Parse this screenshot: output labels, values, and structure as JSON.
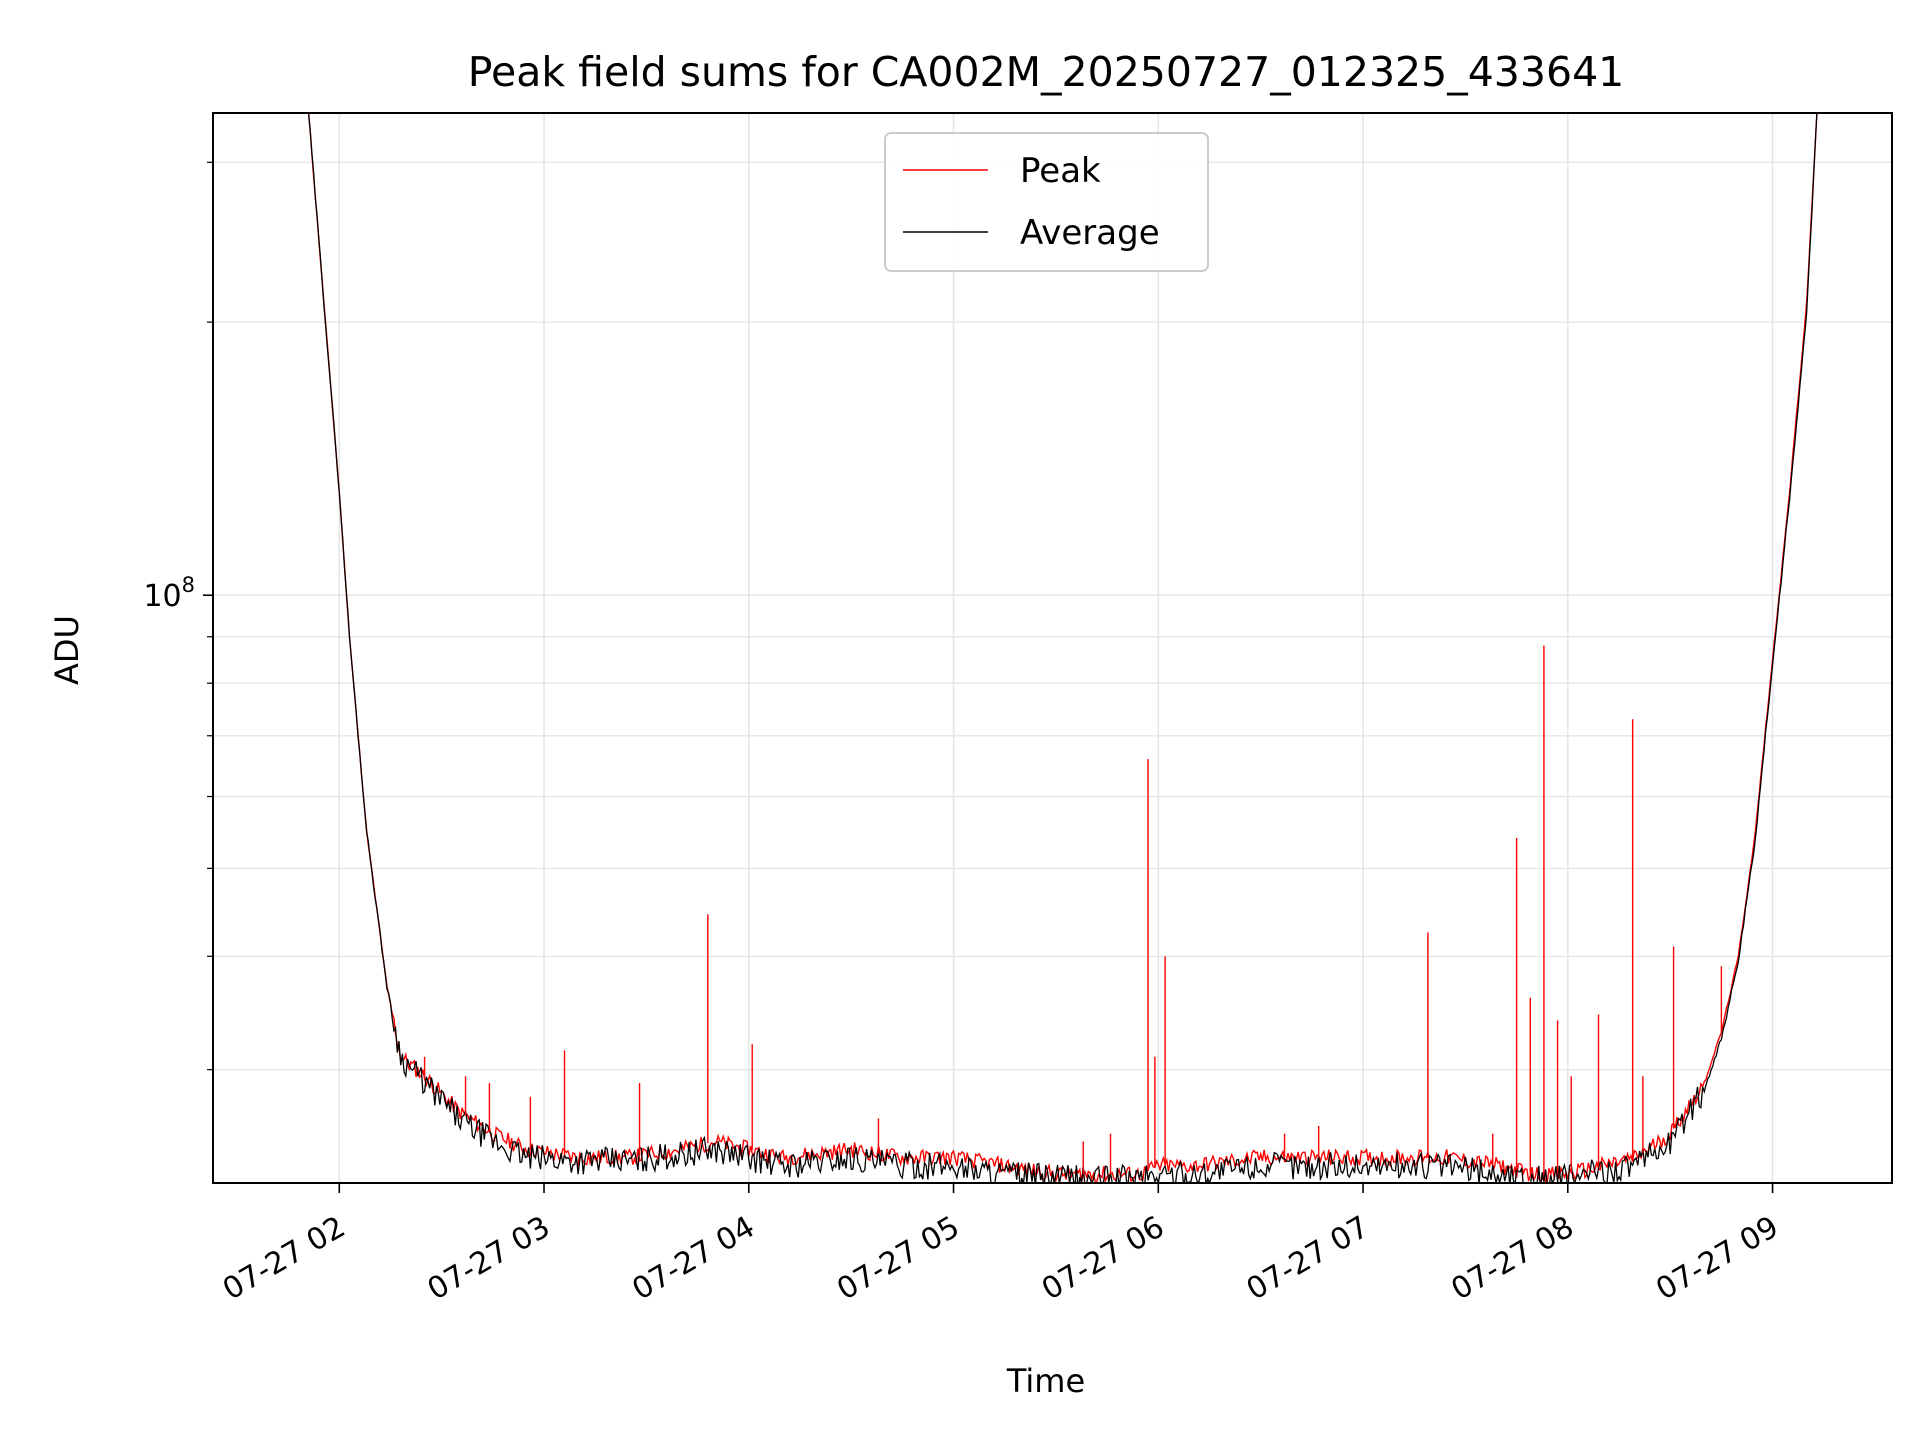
{
  "chart_data": {
    "type": "line",
    "title": "Peak field sums for CA002M_20250727_012325_433641",
    "xlabel": "Time",
    "ylabel": "ADU",
    "yscale": "log",
    "xlim": [
      "07-27 01:23",
      "07-27 09:35"
    ],
    "ylim": [
      22500000,
      340000000
    ],
    "x_ticks": [
      "07-27 02",
      "07-27 03",
      "07-27 04",
      "07-27 05",
      "07-27 06",
      "07-27 07",
      "07-27 08",
      "07-27 09"
    ],
    "y_ticks": [
      {
        "value": 100000000,
        "base": "10",
        "exp": "8"
      }
    ],
    "grid": true,
    "legend_position": "upper center",
    "colors": {
      "peak": "#ff0000",
      "average": "#000000"
    },
    "series": [
      {
        "name": "Peak",
        "color": "#ff0000",
        "x": [
          "01:51",
          "02:00",
          "02:03",
          "02:08",
          "02:14",
          "02:18",
          "02:25",
          "02:35",
          "02:45",
          "02:55",
          "03:10",
          "03:25",
          "03:40",
          "03:50",
          "04:00",
          "04:10",
          "04:30",
          "04:45",
          "05:00",
          "05:15",
          "05:30",
          "05:45",
          "05:55",
          "06:00",
          "06:10",
          "06:30",
          "06:50",
          "07:10",
          "07:25",
          "07:40",
          "07:50",
          "08:00",
          "08:10",
          "08:20",
          "08:30",
          "08:40",
          "08:45",
          "08:50",
          "08:55",
          "09:00",
          "09:05",
          "09:10",
          "09:13"
        ],
        "y": [
          340000000,
          130000000,
          90000000,
          55000000,
          37000000,
          31000000,
          29500000,
          27000000,
          25500000,
          24500000,
          24000000,
          24000000,
          24500000,
          25000000,
          24500000,
          24000000,
          24500000,
          24000000,
          24000000,
          23500000,
          23000000,
          23000000,
          23000000,
          23500000,
          23500000,
          24000000,
          24000000,
          24000000,
          24000000,
          23500000,
          23000000,
          23000000,
          23500000,
          24000000,
          25500000,
          29000000,
          33000000,
          40000000,
          55000000,
          85000000,
          130000000,
          210000000,
          340000000
        ]
      },
      {
        "name": "Average",
        "color": "#000000",
        "x": [
          "01:51",
          "02:00",
          "02:03",
          "02:08",
          "02:14",
          "02:18",
          "02:25",
          "02:35",
          "02:45",
          "02:55",
          "03:10",
          "03:25",
          "03:40",
          "03:50",
          "04:00",
          "04:10",
          "04:30",
          "04:45",
          "05:00",
          "05:15",
          "05:30",
          "05:45",
          "05:55",
          "06:00",
          "06:10",
          "06:30",
          "06:50",
          "07:10",
          "07:25",
          "07:40",
          "07:50",
          "08:00",
          "08:10",
          "08:20",
          "08:30",
          "08:40",
          "08:45",
          "08:50",
          "08:55",
          "09:00",
          "09:05",
          "09:10",
          "09:13"
        ],
        "y": [
          340000000,
          130000000,
          90000000,
          55000000,
          37000000,
          31000000,
          29000000,
          26500000,
          25000000,
          24000000,
          23800000,
          23800000,
          24200000,
          24500000,
          24000000,
          23500000,
          24000000,
          23500000,
          23500000,
          23000000,
          22800000,
          22800000,
          22800000,
          23000000,
          23000000,
          23500000,
          23500000,
          23500000,
          23500000,
          23000000,
          22800000,
          22800000,
          23200000,
          23500000,
          25000000,
          28500000,
          32500000,
          39500000,
          54000000,
          84000000,
          128000000,
          205000000,
          340000000
        ]
      }
    ],
    "spikes": [
      {
        "series": "Peak",
        "x": "02:25",
        "y": 31000000
      },
      {
        "series": "Peak",
        "x": "02:37",
        "y": 29500000
      },
      {
        "series": "Peak",
        "x": "02:44",
        "y": 29000000
      },
      {
        "series": "Peak",
        "x": "02:56",
        "y": 28000000
      },
      {
        "series": "Peak",
        "x": "03:06",
        "y": 31500000
      },
      {
        "series": "Peak",
        "x": "03:28",
        "y": 29000000
      },
      {
        "series": "Peak",
        "x": "03:48",
        "y": 44500000
      },
      {
        "series": "Peak",
        "x": "04:01",
        "y": 32000000
      },
      {
        "series": "Peak",
        "x": "04:38",
        "y": 26500000
      },
      {
        "series": "Peak",
        "x": "05:38",
        "y": 25000000
      },
      {
        "series": "Peak",
        "x": "05:46",
        "y": 25500000
      },
      {
        "series": "Peak",
        "x": "05:57",
        "y": 66000000
      },
      {
        "series": "Peak",
        "x": "05:59",
        "y": 31000000
      },
      {
        "series": "Peak",
        "x": "06:02",
        "y": 40000000
      },
      {
        "series": "Peak",
        "x": "06:37",
        "y": 25500000
      },
      {
        "series": "Peak",
        "x": "06:47",
        "y": 26000000
      },
      {
        "series": "Peak",
        "x": "07:19",
        "y": 42500000
      },
      {
        "series": "Peak",
        "x": "07:38",
        "y": 25500000
      },
      {
        "series": "Peak",
        "x": "07:45",
        "y": 54000000
      },
      {
        "series": "Peak",
        "x": "07:49",
        "y": 36000000
      },
      {
        "series": "Peak",
        "x": "07:53",
        "y": 88000000
      },
      {
        "series": "Peak",
        "x": "07:57",
        "y": 34000000
      },
      {
        "series": "Peak",
        "x": "08:01",
        "y": 29500000
      },
      {
        "series": "Peak",
        "x": "08:09",
        "y": 34500000
      },
      {
        "series": "Peak",
        "x": "08:19",
        "y": 73000000
      },
      {
        "series": "Peak",
        "x": "08:22",
        "y": 29500000
      },
      {
        "series": "Peak",
        "x": "08:31",
        "y": 41000000
      },
      {
        "series": "Peak",
        "x": "08:45",
        "y": 39000000
      }
    ]
  }
}
